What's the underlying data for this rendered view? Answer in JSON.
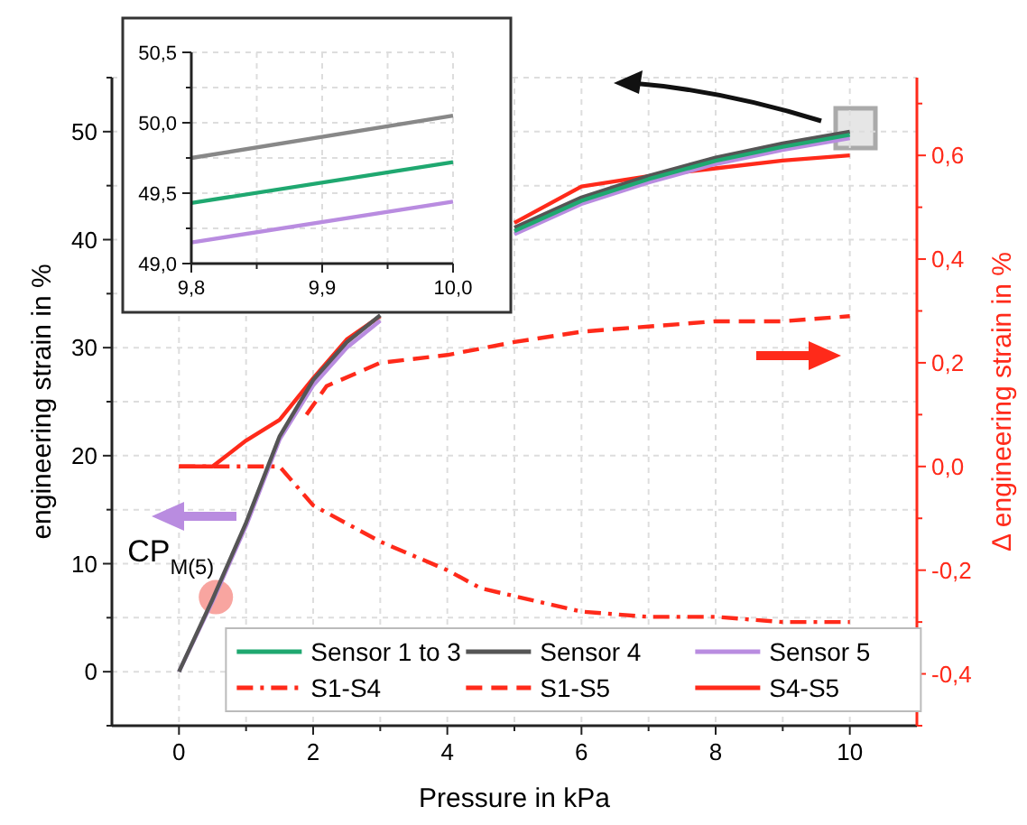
{
  "chart_data": [
    {
      "type": "line",
      "xlabel": "Pressure in kPa",
      "ylabel": "engineering strain in %",
      "y2label": "Δ engineering strain in %",
      "xlim": [
        -1,
        11
      ],
      "xticks": [
        0,
        {
          "value": 1,
          "label": null
        },
        2,
        {
          "value": 3,
          "label": null
        },
        4,
        {
          "value": 5,
          "label": null
        },
        6,
        {
          "value": 7,
          "label": null
        },
        8,
        {
          "value": 9,
          "label": null
        },
        10
      ],
      "ylim": [
        -5,
        55
      ],
      "yticks": [
        {
          "value": -5,
          "label": null
        },
        0,
        {
          "value": 5,
          "label": null
        },
        10,
        {
          "value": 15,
          "label": null
        },
        20,
        {
          "value": 25,
          "label": null
        },
        30,
        {
          "value": 35,
          "label": null
        },
        40,
        {
          "value": 45,
          "label": null
        },
        50,
        {
          "value": 55,
          "label": null
        }
      ],
      "y2lim": [
        -0.5,
        0.75
      ],
      "y2ticks": [
        {
          "value": -0.5,
          "label": null
        },
        {
          "value": -0.4,
          "label": "-0,4"
        },
        {
          "value": -0.3,
          "label": null
        },
        {
          "value": -0.2,
          "label": "-0,2"
        },
        {
          "value": -0.1,
          "label": null
        },
        {
          "value": 0,
          "label": "0,0"
        },
        {
          "value": 0.1,
          "label": null
        },
        {
          "value": 0.2,
          "label": "0,2"
        },
        {
          "value": 0.3,
          "label": null
        },
        {
          "value": 0.4,
          "label": "0,4"
        },
        {
          "value": 0.5,
          "label": null
        },
        {
          "value": 0.6,
          "label": "0,6"
        },
        {
          "value": 0.7,
          "label": null
        }
      ],
      "grid": true,
      "legend": "bottom",
      "x": [
        0,
        0.5,
        1,
        1.5,
        2,
        2.5,
        3,
        3.5,
        4,
        5,
        6,
        7,
        8,
        9,
        10
      ],
      "series": [
        {
          "name": "Sensor 1 to 3",
          "color": "#1fa870",
          "line_style": "solid",
          "values": [
            null,
            null,
            null,
            null,
            null,
            null,
            null,
            null,
            null,
            40.8,
            43.6,
            45.6,
            47.3,
            48.6,
            49.7
          ]
        },
        {
          "name": "Sensor 4",
          "color": "#555555",
          "line_style": "solid",
          "values": [
            0,
            6.7,
            13.8,
            21.8,
            27,
            30.5,
            33,
            null,
            null,
            41.1,
            43.9,
            45.9,
            47.6,
            48.9,
            50.0
          ]
        },
        {
          "name": "Sensor 5",
          "color": "#b98ce0",
          "line_style": "solid",
          "values": [
            0,
            6.5,
            13.5,
            21.5,
            26.5,
            30,
            32.5,
            null,
            null,
            40.5,
            43.3,
            45.3,
            47,
            48.3,
            49.4
          ]
        },
        {
          "name": "S1-S4",
          "color": "#ff2a1a",
          "line_style": "dashdot",
          "axis": "y2",
          "x": [
            0,
            0.5,
            1,
            1.5,
            2,
            3,
            4,
            4.5,
            5,
            6,
            7,
            8,
            9,
            10
          ],
          "values": [
            0,
            0,
            0,
            0,
            -0.075,
            -0.145,
            -0.2,
            -0.235,
            -0.25,
            -0.28,
            -0.29,
            -0.29,
            -0.3,
            -0.3
          ]
        },
        {
          "name": "S1-S5",
          "color": "#ff2a1a",
          "line_style": "dashed",
          "axis": "y2",
          "x": [
            1.9,
            2.2,
            3,
            4,
            5,
            6,
            7,
            8,
            9,
            10
          ],
          "values": [
            0.1,
            0.155,
            0.2,
            0.215,
            0.24,
            0.26,
            0.27,
            0.28,
            0.28,
            0.29
          ]
        },
        {
          "name": "S4-S5",
          "color": "#ff2a1a",
          "line_style": "solid",
          "axis": "y2",
          "values": [
            0,
            0,
            0.05,
            0.09,
            0.17,
            0.245,
            0.29,
            null,
            null,
            0.47,
            0.54,
            0.56,
            0.575,
            0.59,
            0.6
          ]
        }
      ],
      "annotations": [
        {
          "text": "CP$_{M(5)}$",
          "x": 0.55,
          "y": 6.9
        }
      ]
    },
    {
      "type": "line",
      "xlim": [
        9.8,
        10.0
      ],
      "xticks": [
        {
          "value": 9.8,
          "label": "9,8"
        },
        {
          "value": 9.85,
          "label": null
        },
        {
          "value": 9.9,
          "label": "9,9"
        },
        {
          "value": 9.95,
          "label": null
        },
        {
          "value": 10.0,
          "label": "10,0"
        }
      ],
      "ylim": [
        49,
        50.5
      ],
      "yticks": [
        {
          "value": 49,
          "label": "49,0"
        },
        {
          "value": 49.25,
          "label": null
        },
        {
          "value": 49.5,
          "label": "49,5"
        },
        {
          "value": 49.75,
          "label": null
        },
        {
          "value": 50,
          "label": "50,0"
        },
        {
          "value": 50.25,
          "label": null
        },
        {
          "value": 50.5,
          "label": "50,5"
        }
      ],
      "grid": true,
      "x": [
        9.8,
        10.0
      ],
      "series": [
        {
          "color": "#888888",
          "values": [
            49.75,
            50.05
          ]
        },
        {
          "color": "#1fa870",
          "values": [
            49.43,
            49.72
          ]
        },
        {
          "color": "#b98ce0",
          "values": [
            49.15,
            49.44
          ]
        }
      ]
    }
  ]
}
